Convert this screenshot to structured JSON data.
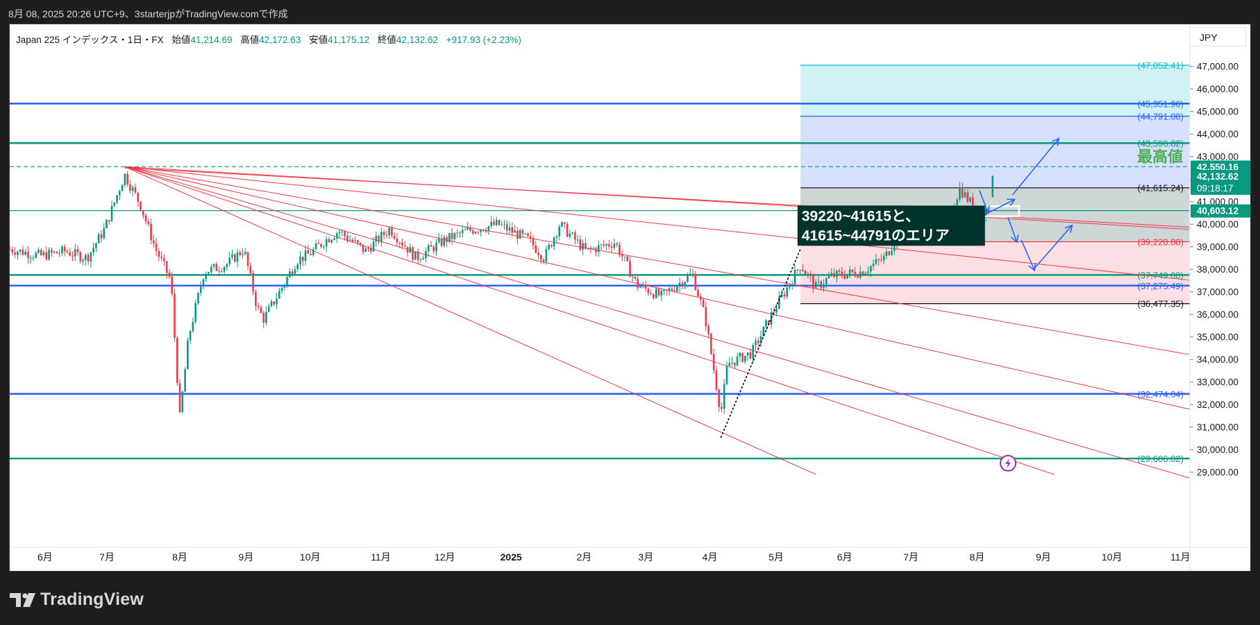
{
  "caption": "8月 08, 2025 20:26 UTC+9、3starterjpがTradingView.comで作成",
  "legend": {
    "symbol": "Japan 225 インデックス・1日・FX",
    "open_label": "始値",
    "open": "41,214.69",
    "high_label": "高値",
    "high": "42,172.63",
    "low_label": "安値",
    "low": "41,175.12",
    "close_label": "終値",
    "close": "42,132.62",
    "change": "+917.93 (+2.23%)"
  },
  "currency": "JPY",
  "brand": "TradingView",
  "colors": {
    "candle_up": "#089981",
    "candle_down": "#f23645",
    "teal_line": "#089981",
    "blue_line": "#2962ff",
    "red_line": "#f23645",
    "cyan_zone": "#d1f2f5",
    "blue_zone": "#d6e0fc",
    "gray_zone": "#cfd6d6",
    "pink_zone": "#fcdfe3",
    "callout_bg": "#00332c"
  },
  "chart_data": {
    "type": "candlestick",
    "ylim": [
      28900,
      47700
    ],
    "y_ticks": [
      29000,
      30000,
      31000,
      32000,
      33000,
      34000,
      35000,
      36000,
      37000,
      38000,
      39000,
      40000,
      41000,
      42000,
      43000,
      44000,
      45000,
      46000,
      47000
    ],
    "x_ticks": [
      {
        "date": "2024-06-05",
        "label": "6月",
        "bold": false
      },
      {
        "date": "2024-07-03",
        "label": "7月",
        "bold": false
      },
      {
        "date": "2024-08-05",
        "label": "8月",
        "bold": false
      },
      {
        "date": "2024-09-04",
        "label": "9月",
        "bold": false
      },
      {
        "date": "2024-10-03",
        "label": "10月",
        "bold": false
      },
      {
        "date": "2024-11-04",
        "label": "11月",
        "bold": false
      },
      {
        "date": "2024-12-03",
        "label": "12月",
        "bold": false
      },
      {
        "date": "2025-01-02",
        "label": "2025",
        "bold": true
      },
      {
        "date": "2025-02-04",
        "label": "2月",
        "bold": false
      },
      {
        "date": "2025-03-04",
        "label": "3月",
        "bold": false
      },
      {
        "date": "2025-04-02",
        "label": "4月",
        "bold": false
      },
      {
        "date": "2025-05-02",
        "label": "5月",
        "bold": false
      },
      {
        "date": "2025-06-02",
        "label": "6月",
        "bold": false
      },
      {
        "date": "2025-07-02",
        "label": "7月",
        "bold": false
      },
      {
        "date": "2025-08-01",
        "label": "8月",
        "bold": false
      },
      {
        "date": "2025-08-31",
        "label": "9月",
        "bold": false
      },
      {
        "date": "2025-10-01",
        "label": "10月",
        "bold": false
      },
      {
        "date": "2025-11-01",
        "label": "11月",
        "bold": false
      }
    ],
    "price_path": [
      [
        "2024-05-20",
        38900
      ],
      [
        "2024-06-03",
        38600
      ],
      [
        "2024-06-14",
        38800
      ],
      [
        "2024-06-24",
        38500
      ],
      [
        "2024-07-02",
        39800
      ],
      [
        "2024-07-11",
        42200
      ],
      [
        "2024-07-18",
        40900
      ],
      [
        "2024-07-25",
        38900
      ],
      [
        "2024-08-01",
        37500
      ],
      [
        "2024-08-05",
        31400
      ],
      [
        "2024-08-09",
        35000
      ],
      [
        "2024-08-16",
        37900
      ],
      [
        "2024-08-26",
        38200
      ],
      [
        "2024-09-03",
        38900
      ],
      [
        "2024-09-09",
        36300
      ],
      [
        "2024-09-12",
        35800
      ],
      [
        "2024-09-18",
        36800
      ],
      [
        "2024-09-27",
        38400
      ],
      [
        "2024-10-03",
        38700
      ],
      [
        "2024-10-10",
        39300
      ],
      [
        "2024-10-16",
        39700
      ],
      [
        "2024-10-28",
        38800
      ],
      [
        "2024-11-08",
        39800
      ],
      [
        "2024-11-20",
        38500
      ],
      [
        "2024-12-03",
        39300
      ],
      [
        "2024-12-13",
        39700
      ],
      [
        "2024-12-27",
        40000
      ],
      [
        "2025-01-10",
        39300
      ],
      [
        "2025-01-17",
        38500
      ],
      [
        "2025-01-24",
        40000
      ],
      [
        "2025-02-05",
        38800
      ],
      [
        "2025-02-18",
        39200
      ],
      [
        "2025-02-28",
        37300
      ],
      [
        "2025-03-11",
        36800
      ],
      [
        "2025-03-25",
        37800
      ],
      [
        "2025-03-31",
        35800
      ],
      [
        "2025-04-07",
        31600
      ],
      [
        "2025-04-10",
        33800
      ],
      [
        "2025-04-21",
        34300
      ],
      [
        "2025-04-30",
        36000
      ],
      [
        "2025-05-13",
        38200
      ],
      [
        "2025-05-20",
        37200
      ],
      [
        "2025-05-27",
        37700
      ],
      [
        "2025-06-10",
        37900
      ],
      [
        "2025-06-20",
        38500
      ],
      [
        "2025-07-01",
        40300
      ],
      [
        "2025-07-08",
        39600
      ],
      [
        "2025-07-18",
        39800
      ],
      [
        "2025-07-24",
        41600
      ],
      [
        "2025-07-31",
        40700
      ],
      [
        "2025-08-04",
        40400
      ],
      [
        "2025-08-07",
        41100
      ],
      [
        "2025-08-08",
        42132
      ]
    ],
    "last_candle": {
      "date": "2025-08-08",
      "open": 41214.69,
      "high": 42172.63,
      "low": 41175.12,
      "close": 42132.62
    },
    "zones": [
      {
        "name": "cyan",
        "from": 44791.08,
        "to": 47052.41,
        "start": "2025-05-13",
        "end": "2025-11-05"
      },
      {
        "name": "blue",
        "from": 41615.24,
        "to": 44791.08,
        "start": "2025-05-13",
        "end": "2025-11-05"
      },
      {
        "name": "gray",
        "from": 39220.88,
        "to": 41615.24,
        "start": "2025-05-13",
        "end": "2025-11-05"
      },
      {
        "name": "pink",
        "from": 36477.35,
        "to": 39220.88,
        "start": "2025-05-13",
        "end": "2025-11-05"
      }
    ],
    "horizontal_lines": [
      {
        "price": 45351.9,
        "color": "blue",
        "thick": true,
        "start": "2024-05-20",
        "label": "(45,351.90)"
      },
      {
        "price": 43596.82,
        "color": "teal",
        "thick": true,
        "start": "2024-05-20",
        "label": "(43,596.82)"
      },
      {
        "price": 37749.0,
        "color": "teal",
        "thick": true,
        "start": "2024-05-20",
        "label": "(37,749.00)"
      },
      {
        "price": 37275.49,
        "color": "blue",
        "thick": true,
        "start": "2024-05-20",
        "label": "(37,275.49)"
      },
      {
        "price": 32474.04,
        "color": "blue",
        "thick": true,
        "start": "2024-05-20",
        "label": "(32,474.04)"
      },
      {
        "price": 29606.82,
        "color": "teal",
        "thick": true,
        "start": "2024-05-20",
        "label": "(29,606.82)"
      },
      {
        "price": 47052.41,
        "color": "cyan",
        "thick": false,
        "start": "2025-05-13",
        "label": "(47,052.41)"
      },
      {
        "price": 44791.08,
        "color": "blue",
        "thick": false,
        "start": "2025-05-13",
        "label": "(44,791.08)"
      },
      {
        "price": 41615.24,
        "color": "black",
        "thick": false,
        "start": "2025-05-13",
        "label": "(41,615.24)"
      },
      {
        "price": 39220.88,
        "color": "red",
        "thick": false,
        "start": "2025-05-13",
        "label": "(39,220.88)"
      },
      {
        "price": 36477.35,
        "color": "black",
        "thick": false,
        "start": "2025-05-13",
        "label": "(36,477.35)"
      },
      {
        "price": 40603.12,
        "color": "teal",
        "thick": false,
        "start": "2024-05-20",
        "label": ""
      }
    ],
    "price_badges": [
      {
        "price": 42550.16,
        "text": "42,550.16",
        "sub": ""
      },
      {
        "price": 42132.62,
        "text": "42,132.62",
        "sub": "09:18:17"
      },
      {
        "price": 40603.12,
        "text": "40,603.12",
        "sub": ""
      }
    ],
    "dashed_high": 42550.16,
    "fan_origin": {
      "date": "2024-07-11",
      "price": 42550
    },
    "fan_lines": [
      [
        "2025-11-05",
        39770
      ],
      [
        "2025-11-05",
        37520
      ],
      [
        "2025-11-05",
        34220
      ],
      [
        "2025-11-05",
        31800
      ],
      [
        "2025-11-05",
        28750
      ],
      [
        "2025-09-05",
        28900
      ],
      [
        "2025-05-20",
        28900
      ]
    ],
    "channel_line": {
      "start": [
        "2024-07-11",
        42500
      ],
      "end": [
        "2025-11-05",
        39870
      ]
    },
    "dotted_trend": [
      [
        "2025-04-07",
        30550
      ],
      [
        "2025-05-13",
        38900
      ]
    ],
    "callout": {
      "line1": "39220~41615と、",
      "line2": "41615~44791のエリア",
      "date": "2025-05-12",
      "price": 40520
    },
    "ath_label": "最高値",
    "ath_price": 43000,
    "highlight_box": {
      "start": "2025-07-01",
      "end": "2025-08-20",
      "top": 40800,
      "bottom": 40350
    },
    "arrows": [
      {
        "from": [
          "2025-08-04",
          40400
        ],
        "to": [
          "2025-08-18",
          41100
        ]
      },
      {
        "from": [
          "2025-08-17",
          41300
        ],
        "to": [
          "2025-09-07",
          43800
        ]
      },
      {
        "from": [
          "2025-08-15",
          40300
        ],
        "to": [
          "2025-08-19",
          39200
        ]
      },
      {
        "from": [
          "2025-08-21",
          39300
        ],
        "to": [
          "2025-08-27",
          37950
        ]
      },
      {
        "from": [
          "2025-08-27",
          38050
        ],
        "to": [
          "2025-09-13",
          39950
        ]
      },
      {
        "from": [
          "2025-08-02",
          41500
        ],
        "to": [
          "2025-08-06",
          40500
        ]
      }
    ],
    "lightning_marker": {
      "date": "2025-08-15",
      "price": 29400
    }
  }
}
